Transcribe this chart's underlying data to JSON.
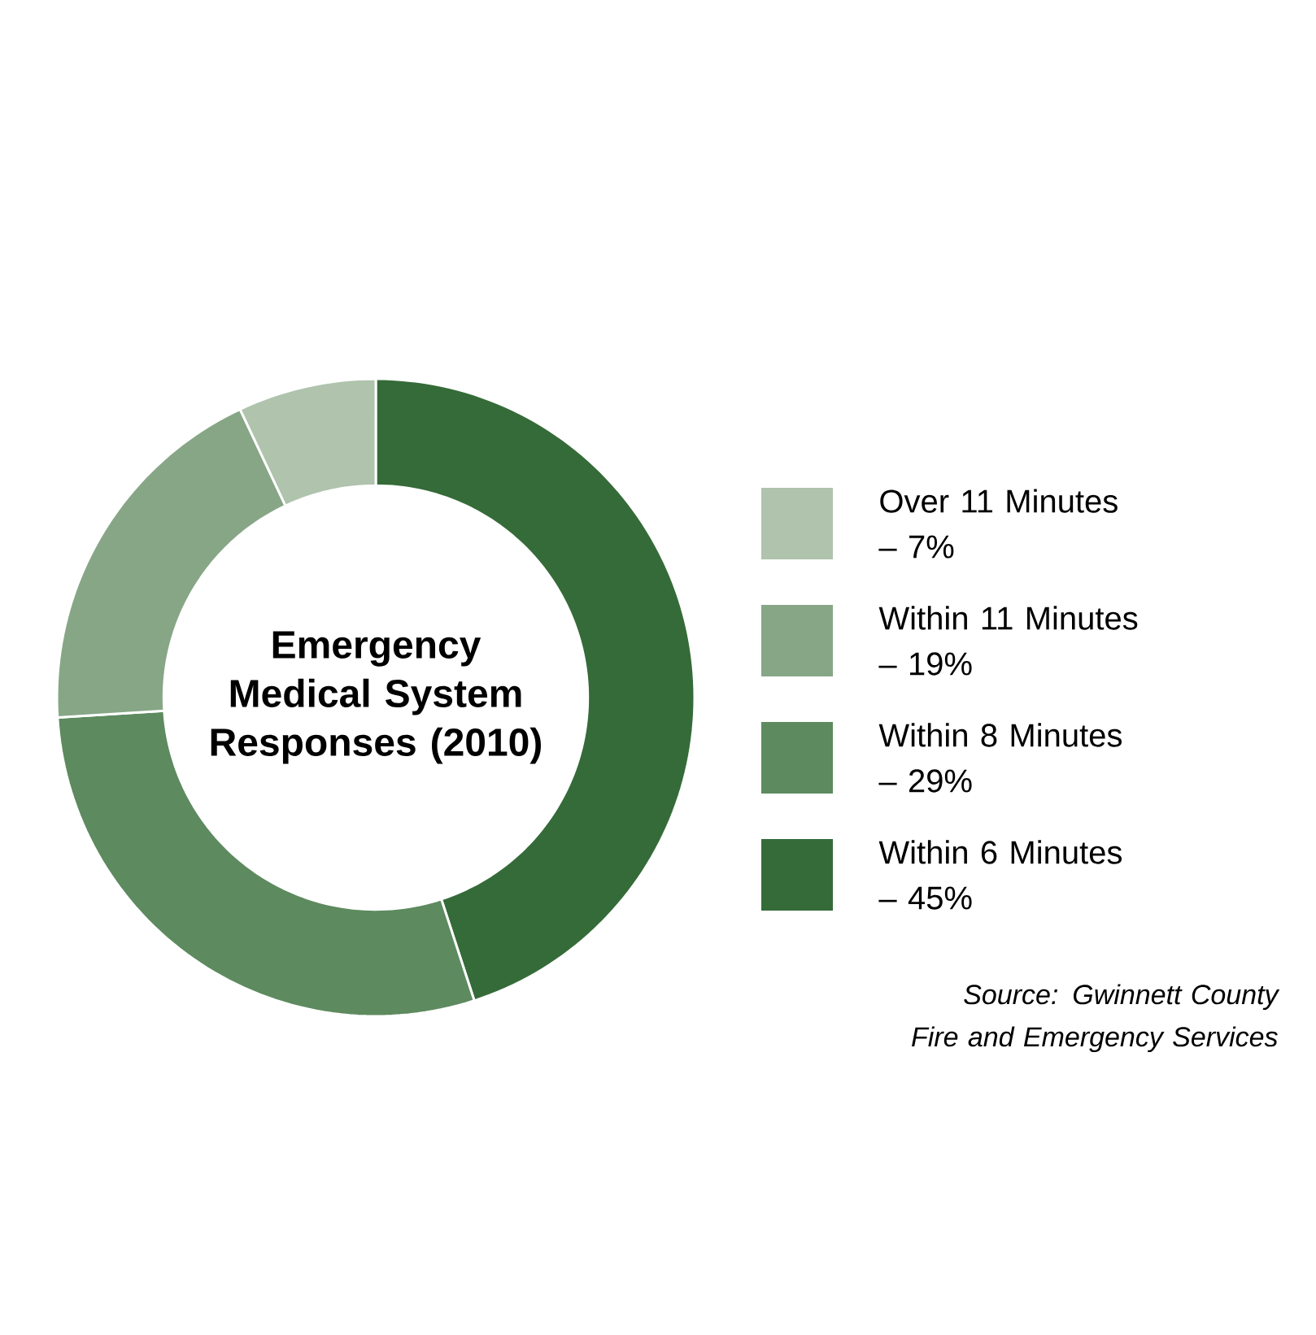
{
  "chart_data": {
    "type": "donut",
    "title": "Emergency Medical System Responses (2010)",
    "categories": [
      "Over 11 Minutes – 7%",
      "Within 11 Minutes – 19%",
      "Within 8 Minutes – 29%",
      "Within 6 Minutes – 45%"
    ],
    "values": [
      7,
      19,
      29,
      45
    ],
    "colors": [
      "#afc3ad",
      "#87a686",
      "#5d8a5f",
      "#356b38"
    ],
    "legend": "right",
    "annotations": [
      "*Source: Gwinnett County Fire and Emergency Services*"
    ]
  }
}
